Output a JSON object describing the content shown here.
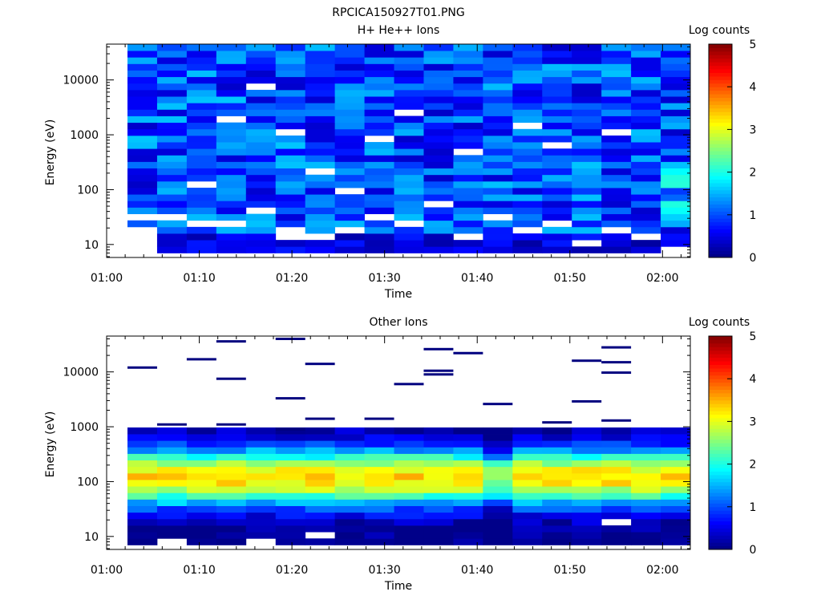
{
  "figure_title": "RPCICA150927T01.PNG",
  "colorscale": [
    "#00007f",
    "#0000ff",
    "#007fff",
    "#00ffff",
    "#7fff7f",
    "#ffff00",
    "#ff7f00",
    "#ff0000",
    "#7f0000"
  ],
  "chart_data": [
    {
      "type": "heatmap",
      "title": "H+ He++ Ions",
      "xlabel": "Time",
      "ylabel": "Energy (eV)",
      "colorbar_label": "Log counts",
      "colorbar_range": [
        0,
        5
      ],
      "colorbar_ticks": [
        "0",
        "1",
        "2",
        "3",
        "4",
        "5"
      ],
      "y_scale": "log",
      "ylim_eV": [
        5.8,
        45000
      ],
      "y_ticks": [
        {
          "value": 10,
          "label": "10"
        },
        {
          "value": 100,
          "label": "100"
        },
        {
          "value": 1000,
          "label": "1000"
        },
        {
          "value": 10000,
          "label": "10000"
        }
      ],
      "x_range": [
        "01:00",
        "02:03"
      ],
      "x_ticks": [
        {
          "label": "01:00",
          "time": "01:00"
        },
        {
          "label": "01:10",
          "time": "01:10"
        },
        {
          "label": "01:20",
          "time": "01:20"
        },
        {
          "label": "01:30",
          "time": "01:30"
        },
        {
          "label": "01:40",
          "time": "01:40"
        },
        {
          "label": "01:50",
          "time": "01:50"
        },
        {
          "label": "02:00",
          "time": "02:00"
        }
      ],
      "data_start": "01:02:15",
      "data_end": "02:03:00",
      "time_bins": 19,
      "energy_bins": 32,
      "energy_min_eV": 7,
      "energy_max_eV": 45000,
      "profile": "hplus",
      "typical_log_counts": "0.5-1.5",
      "empty_bins": [
        [
          0,
          0
        ],
        [
          0,
          1
        ],
        [
          0,
          2
        ],
        [
          0,
          3
        ],
        [
          0,
          5
        ],
        [
          1,
          5
        ],
        [
          2,
          4
        ],
        [
          3,
          4
        ],
        [
          4,
          6
        ],
        [
          5,
          2
        ],
        [
          5,
          3
        ],
        [
          6,
          2
        ],
        [
          7,
          3
        ],
        [
          8,
          5
        ],
        [
          9,
          4
        ],
        [
          10,
          7
        ],
        [
          11,
          2
        ],
        [
          12,
          5
        ],
        [
          13,
          3
        ],
        [
          14,
          4
        ],
        [
          15,
          1
        ],
        [
          16,
          3
        ],
        [
          17,
          2
        ],
        [
          18,
          0
        ],
        [
          3,
          20
        ],
        [
          4,
          25
        ],
        [
          5,
          18
        ],
        [
          6,
          12
        ],
        [
          8,
          17
        ],
        [
          11,
          15
        ],
        [
          14,
          16
        ],
        [
          16,
          18
        ],
        [
          2,
          10
        ],
        [
          9,
          21
        ],
        [
          13,
          19
        ],
        [
          7,
          9
        ]
      ]
    },
    {
      "type": "heatmap",
      "title": "Other Ions",
      "xlabel": "Time",
      "ylabel": "Energy (eV)",
      "colorbar_label": "Log counts",
      "colorbar_range": [
        0,
        5
      ],
      "colorbar_ticks": [
        "0",
        "1",
        "2",
        "3",
        "4",
        "5"
      ],
      "y_scale": "log",
      "ylim_eV": [
        5.8,
        45000
      ],
      "y_ticks": [
        {
          "value": 10,
          "label": "10"
        },
        {
          "value": 100,
          "label": "100"
        },
        {
          "value": 1000,
          "label": "1000"
        },
        {
          "value": 10000,
          "label": "10000"
        }
      ],
      "x_range": [
        "01:00",
        "02:03"
      ],
      "x_ticks": [
        {
          "label": "01:00",
          "time": "01:00"
        },
        {
          "label": "01:10",
          "time": "01:10"
        },
        {
          "label": "01:20",
          "time": "01:20"
        },
        {
          "label": "01:30",
          "time": "01:30"
        },
        {
          "label": "01:40",
          "time": "01:40"
        },
        {
          "label": "01:50",
          "time": "01:50"
        },
        {
          "label": "02:00",
          "time": "02:00"
        }
      ],
      "data_start": "01:02:15",
      "data_end": "02:03:00",
      "time_bins": 19,
      "energy_bins": 32,
      "energy_min_eV": 7,
      "energy_max_eV": 45000,
      "profile": "heavy",
      "peak_energy_eV": 120,
      "peak_log_counts": 3.3,
      "sparse_high_energy_lines": [
        [
          0,
          12000
        ],
        [
          1,
          1100
        ],
        [
          2,
          17000
        ],
        [
          3,
          1100
        ],
        [
          3,
          7500
        ],
        [
          3,
          36000
        ],
        [
          5,
          3300
        ],
        [
          5,
          40000
        ],
        [
          5,
          900
        ],
        [
          6,
          14000
        ],
        [
          6,
          1400
        ],
        [
          8,
          1400
        ],
        [
          9,
          6000
        ],
        [
          10,
          9000
        ],
        [
          10,
          10500
        ],
        [
          10,
          26000
        ],
        [
          11,
          22000
        ],
        [
          12,
          2600
        ],
        [
          14,
          1200
        ],
        [
          15,
          2900
        ],
        [
          15,
          16000
        ],
        [
          16,
          15000
        ],
        [
          16,
          9700
        ],
        [
          16,
          28000
        ],
        [
          16,
          1300
        ]
      ]
    }
  ]
}
